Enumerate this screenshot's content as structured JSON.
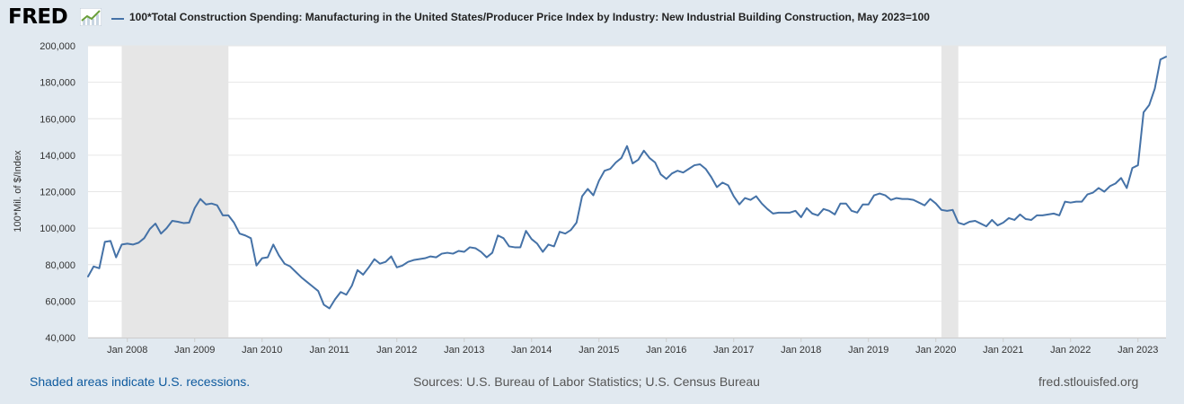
{
  "header": {
    "logo_text": "FRED",
    "logo_icon": "trend-line-icon"
  },
  "footer": {
    "recessions_note": "Shaded areas indicate U.S. recessions.",
    "sources": "Sources: U.S. Bureau of Labor Statistics; U.S. Census Bureau",
    "site": "fred.stlouisfed.org"
  },
  "colors": {
    "series": "#4572a7",
    "plot_background": "#ffffff",
    "page_background": "#e1e9f0",
    "recession_shade": "#e6e6e6",
    "gridline": "#e6e6e6"
  },
  "chart_data": {
    "type": "line",
    "title": "",
    "legend_position": "top-left",
    "xlabel": "",
    "ylabel": "100*Mil. of $/Index",
    "ylim": [
      40000,
      200000
    ],
    "xlim": [
      "2007-06",
      "2023-05"
    ],
    "grid": true,
    "yticks": [
      40000,
      60000,
      80000,
      100000,
      120000,
      140000,
      160000,
      180000,
      200000
    ],
    "ytick_labels": [
      "40,000",
      "60,000",
      "80,000",
      "100,000",
      "120,000",
      "140,000",
      "160,000",
      "180,000",
      "200,000"
    ],
    "xticks": [
      "2008-01",
      "2009-01",
      "2010-01",
      "2011-01",
      "2012-01",
      "2013-01",
      "2014-01",
      "2015-01",
      "2016-01",
      "2017-01",
      "2018-01",
      "2019-01",
      "2020-01",
      "2021-01",
      "2022-01",
      "2023-01"
    ],
    "xtick_labels": [
      "Jan 2008",
      "Jan 2009",
      "Jan 2010",
      "Jan 2011",
      "Jan 2012",
      "Jan 2013",
      "Jan 2014",
      "Jan 2015",
      "Jan 2016",
      "Jan 2017",
      "Jan 2018",
      "Jan 2019",
      "Jan 2020",
      "Jan 2021",
      "Jan 2022",
      "Jan 2023"
    ],
    "recessions": [
      {
        "start": "2007-12",
        "end": "2009-06"
      },
      {
        "start": "2020-02",
        "end": "2020-04"
      }
    ],
    "series": [
      {
        "name": "100*Total Construction Spending: Manufacturing in the United States/Producer Price Index by Industry: New Industrial Building Construction, May 2023=100",
        "points": [
          [
            "2007-06",
            73500
          ],
          [
            "2007-07",
            79000
          ],
          [
            "2007-08",
            78000
          ],
          [
            "2007-09",
            92500
          ],
          [
            "2007-10",
            93000
          ],
          [
            "2007-11",
            84000
          ],
          [
            "2007-12",
            91000
          ],
          [
            "2008-01",
            91500
          ],
          [
            "2008-02",
            91000
          ],
          [
            "2008-03",
            92000
          ],
          [
            "2008-04",
            94500
          ],
          [
            "2008-05",
            99500
          ],
          [
            "2008-06",
            102500
          ],
          [
            "2008-07",
            97000
          ],
          [
            "2008-08",
            100000
          ],
          [
            "2008-09",
            104000
          ],
          [
            "2008-10",
            103500
          ],
          [
            "2008-11",
            102800
          ],
          [
            "2008-12",
            103000
          ],
          [
            "2009-01",
            111000
          ],
          [
            "2009-02",
            116000
          ],
          [
            "2009-03",
            113000
          ],
          [
            "2009-04",
            113500
          ],
          [
            "2009-05",
            112500
          ],
          [
            "2009-06",
            107000
          ],
          [
            "2009-07",
            107000
          ],
          [
            "2009-08",
            103000
          ],
          [
            "2009-09",
            97000
          ],
          [
            "2009-10",
            96000
          ],
          [
            "2009-11",
            94500
          ],
          [
            "2009-12",
            79500
          ],
          [
            "2010-01",
            83500
          ],
          [
            "2010-02",
            84000
          ],
          [
            "2010-03",
            91000
          ],
          [
            "2010-04",
            85000
          ],
          [
            "2010-05",
            80500
          ],
          [
            "2010-06",
            79000
          ],
          [
            "2010-07",
            76000
          ],
          [
            "2010-08",
            73000
          ],
          [
            "2010-09",
            70500
          ],
          [
            "2010-10",
            68000
          ],
          [
            "2010-11",
            65500
          ],
          [
            "2010-12",
            58000
          ],
          [
            "2011-01",
            56000
          ],
          [
            "2011-02",
            61000
          ],
          [
            "2011-03",
            65000
          ],
          [
            "2011-04",
            63500
          ],
          [
            "2011-05",
            68500
          ],
          [
            "2011-06",
            77000
          ],
          [
            "2011-07",
            74500
          ],
          [
            "2011-08",
            78500
          ],
          [
            "2011-09",
            83000
          ],
          [
            "2011-10",
            80500
          ],
          [
            "2011-11",
            81500
          ],
          [
            "2011-12",
            84500
          ],
          [
            "2012-01",
            78500
          ],
          [
            "2012-02",
            79500
          ],
          [
            "2012-03",
            81500
          ],
          [
            "2012-04",
            82500
          ],
          [
            "2012-05",
            83000
          ],
          [
            "2012-06",
            83500
          ],
          [
            "2012-07",
            84500
          ],
          [
            "2012-08",
            84000
          ],
          [
            "2012-09",
            86000
          ],
          [
            "2012-10",
            86500
          ],
          [
            "2012-11",
            86000
          ],
          [
            "2012-12",
            87500
          ],
          [
            "2013-01",
            87000
          ],
          [
            "2013-02",
            89500
          ],
          [
            "2013-03",
            89000
          ],
          [
            "2013-04",
            87000
          ],
          [
            "2013-05",
            84000
          ],
          [
            "2013-06",
            86500
          ],
          [
            "2013-07",
            96000
          ],
          [
            "2013-08",
            94500
          ],
          [
            "2013-09",
            90000
          ],
          [
            "2013-10",
            89500
          ],
          [
            "2013-11",
            89500
          ],
          [
            "2013-12",
            98500
          ],
          [
            "2014-01",
            94000
          ],
          [
            "2014-02",
            91500
          ],
          [
            "2014-03",
            87000
          ],
          [
            "2014-04",
            91000
          ],
          [
            "2014-05",
            90000
          ],
          [
            "2014-06",
            98000
          ],
          [
            "2014-07",
            97000
          ],
          [
            "2014-08",
            99000
          ],
          [
            "2014-09",
            103000
          ],
          [
            "2014-10",
            117500
          ],
          [
            "2014-11",
            121500
          ],
          [
            "2014-12",
            118000
          ],
          [
            "2015-01",
            126000
          ],
          [
            "2015-02",
            131500
          ],
          [
            "2015-03",
            132500
          ],
          [
            "2015-04",
            136000
          ],
          [
            "2015-05",
            138500
          ],
          [
            "2015-06",
            145000
          ],
          [
            "2015-07",
            135500
          ],
          [
            "2015-08",
            137500
          ],
          [
            "2015-09",
            142500
          ],
          [
            "2015-10",
            138500
          ],
          [
            "2015-11",
            136000
          ],
          [
            "2015-12",
            129500
          ],
          [
            "2016-01",
            127000
          ],
          [
            "2016-02",
            130000
          ],
          [
            "2016-03",
            131500
          ],
          [
            "2016-04",
            130500
          ],
          [
            "2016-05",
            132500
          ],
          [
            "2016-06",
            134500
          ],
          [
            "2016-07",
            135000
          ],
          [
            "2016-08",
            132500
          ],
          [
            "2016-09",
            128000
          ],
          [
            "2016-10",
            122500
          ],
          [
            "2016-11",
            125000
          ],
          [
            "2016-12",
            123500
          ],
          [
            "2017-01",
            117500
          ],
          [
            "2017-02",
            113000
          ],
          [
            "2017-03",
            116500
          ],
          [
            "2017-04",
            115500
          ],
          [
            "2017-05",
            117500
          ],
          [
            "2017-06",
            113500
          ],
          [
            "2017-07",
            110500
          ],
          [
            "2017-08",
            108000
          ],
          [
            "2017-09",
            108500
          ],
          [
            "2017-10",
            108500
          ],
          [
            "2017-11",
            108500
          ],
          [
            "2017-12",
            109500
          ],
          [
            "2018-01",
            106000
          ],
          [
            "2018-02",
            111000
          ],
          [
            "2018-03",
            108000
          ],
          [
            "2018-04",
            107000
          ],
          [
            "2018-05",
            110500
          ],
          [
            "2018-06",
            109500
          ],
          [
            "2018-07",
            107500
          ],
          [
            "2018-08",
            113500
          ],
          [
            "2018-09",
            113500
          ],
          [
            "2018-10",
            109500
          ],
          [
            "2018-11",
            108500
          ],
          [
            "2018-12",
            113000
          ],
          [
            "2019-01",
            113000
          ],
          [
            "2019-02",
            118000
          ],
          [
            "2019-03",
            119000
          ],
          [
            "2019-04",
            118000
          ],
          [
            "2019-05",
            115500
          ],
          [
            "2019-06",
            116500
          ],
          [
            "2019-07",
            116000
          ],
          [
            "2019-08",
            116000
          ],
          [
            "2019-09",
            115500
          ],
          [
            "2019-10",
            114000
          ],
          [
            "2019-11",
            112500
          ],
          [
            "2019-12",
            116000
          ],
          [
            "2020-01",
            113500
          ],
          [
            "2020-02",
            110000
          ],
          [
            "2020-03",
            109500
          ],
          [
            "2020-04",
            110000
          ],
          [
            "2020-05",
            103000
          ],
          [
            "2020-06",
            102000
          ],
          [
            "2020-07",
            103500
          ],
          [
            "2020-08",
            104000
          ],
          [
            "2020-09",
            102500
          ],
          [
            "2020-10",
            101000
          ],
          [
            "2020-11",
            104500
          ],
          [
            "2020-12",
            101500
          ],
          [
            "2021-01",
            103000
          ],
          [
            "2021-02",
            105500
          ],
          [
            "2021-03",
            104500
          ],
          [
            "2021-04",
            107500
          ],
          [
            "2021-05",
            105000
          ],
          [
            "2021-06",
            104500
          ],
          [
            "2021-07",
            107000
          ],
          [
            "2021-08",
            107000
          ],
          [
            "2021-09",
            107500
          ],
          [
            "2021-10",
            108000
          ],
          [
            "2021-11",
            107000
          ],
          [
            "2021-12",
            114500
          ],
          [
            "2022-01",
            114000
          ],
          [
            "2022-02",
            114500
          ],
          [
            "2022-03",
            114500
          ],
          [
            "2022-04",
            118500
          ],
          [
            "2022-05",
            119500
          ],
          [
            "2022-06",
            122000
          ],
          [
            "2022-07",
            120000
          ],
          [
            "2022-08",
            123000
          ],
          [
            "2022-09",
            124500
          ],
          [
            "2022-10",
            127500
          ],
          [
            "2022-11",
            122000
          ],
          [
            "2022-12",
            133000
          ],
          [
            "2023-01",
            134500
          ],
          [
            "2023-02",
            163500
          ],
          [
            "2023-03",
            167500
          ],
          [
            "2023-04",
            176500
          ],
          [
            "2023-05",
            192500
          ],
          [
            "2023-06",
            194000
          ]
        ]
      }
    ]
  }
}
